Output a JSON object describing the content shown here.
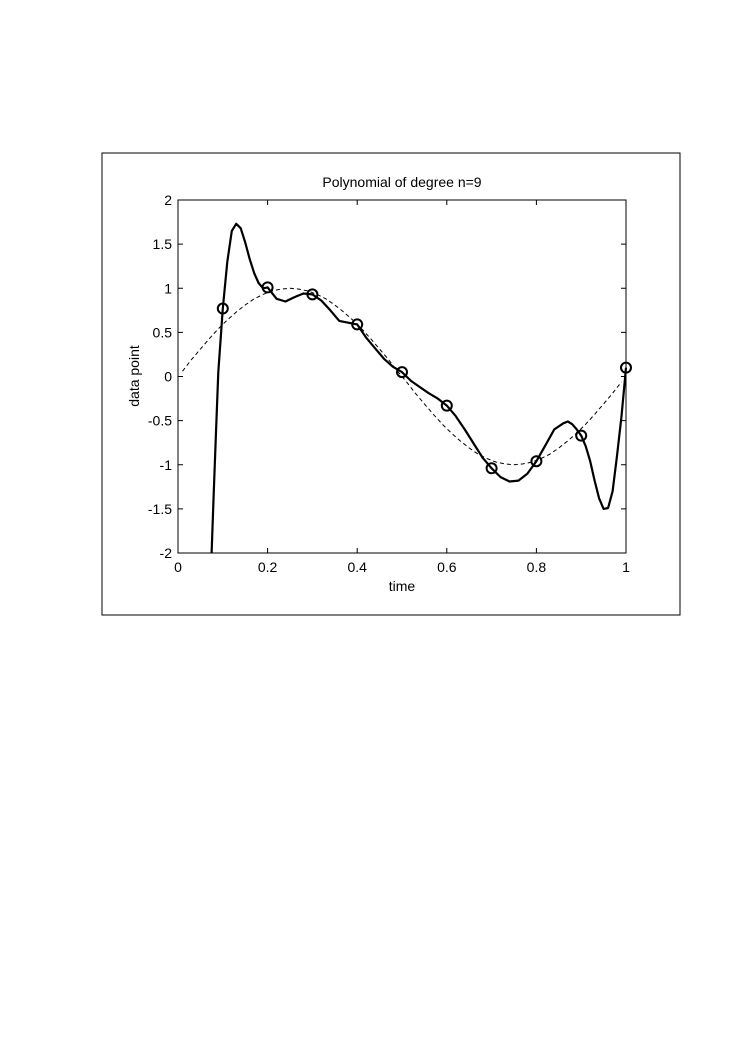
{
  "chart_data": {
    "type": "line",
    "title": "Polynomial of degree n=9",
    "xlabel": "time",
    "ylabel": "data point",
    "xlim": [
      0,
      1
    ],
    "ylim": [
      -2,
      2
    ],
    "x_ticks": [
      0,
      0.2,
      0.4,
      0.6,
      0.8,
      1
    ],
    "x_tick_labels": [
      "0",
      "0.2",
      "0.4",
      "0.6",
      "0.8",
      "1"
    ],
    "y_ticks": [
      -2,
      -1.5,
      -1,
      -0.5,
      0,
      0.5,
      1,
      1.5,
      2
    ],
    "y_tick_labels": [
      "-2",
      "-1.5",
      "-1",
      "-0.5",
      "0",
      "0.5",
      "1",
      "1.5",
      "2"
    ],
    "grid": false,
    "legend": "none",
    "series": [
      {
        "style": "circle-markers",
        "x": [
          0.1,
          0.2,
          0.3,
          0.4,
          0.5,
          0.6,
          0.7,
          0.8,
          0.9,
          1.0
        ],
        "y": [
          0.77,
          1.01,
          0.93,
          0.59,
          0.05,
          -0.33,
          -1.04,
          -0.96,
          -0.67,
          0.1
        ]
      },
      {
        "style": "solid-thick",
        "x": [
          0.075,
          0.08,
          0.085,
          0.09,
          0.1,
          0.11,
          0.12,
          0.13,
          0.14,
          0.15,
          0.16,
          0.17,
          0.18,
          0.19,
          0.2,
          0.22,
          0.24,
          0.26,
          0.28,
          0.3,
          0.32,
          0.34,
          0.36,
          0.38,
          0.4,
          0.42,
          0.44,
          0.46,
          0.48,
          0.5,
          0.52,
          0.54,
          0.56,
          0.58,
          0.6,
          0.62,
          0.64,
          0.66,
          0.68,
          0.7,
          0.72,
          0.74,
          0.76,
          0.78,
          0.8,
          0.82,
          0.84,
          0.86,
          0.87,
          0.88,
          0.89,
          0.9,
          0.91,
          0.92,
          0.93,
          0.94,
          0.95,
          0.96,
          0.97,
          0.98,
          0.99,
          1.0
        ],
        "y": [
          -2.0,
          -1.3,
          -0.6,
          0.05,
          0.77,
          1.3,
          1.65,
          1.73,
          1.68,
          1.52,
          1.33,
          1.17,
          1.06,
          1.0,
          1.01,
          0.88,
          0.85,
          0.9,
          0.94,
          0.93,
          0.86,
          0.75,
          0.63,
          0.61,
          0.59,
          0.44,
          0.32,
          0.2,
          0.11,
          0.05,
          -0.05,
          -0.12,
          -0.19,
          -0.25,
          -0.33,
          -0.45,
          -0.6,
          -0.76,
          -0.92,
          -1.04,
          -1.14,
          -1.19,
          -1.18,
          -1.1,
          -0.96,
          -0.78,
          -0.6,
          -0.53,
          -0.51,
          -0.54,
          -0.6,
          -0.67,
          -0.79,
          -0.96,
          -1.18,
          -1.38,
          -1.5,
          -1.49,
          -1.3,
          -0.9,
          -0.45,
          0.1
        ]
      },
      {
        "style": "dashed",
        "x": [
          0.01,
          0.03,
          0.05,
          0.07,
          0.09,
          0.11,
          0.13,
          0.15,
          0.17,
          0.19,
          0.21,
          0.23,
          0.25,
          0.27,
          0.29,
          0.31,
          0.33,
          0.35,
          0.37,
          0.39,
          0.41,
          0.43,
          0.45,
          0.47,
          0.49,
          0.51,
          0.53,
          0.55,
          0.57,
          0.59,
          0.61,
          0.63,
          0.65,
          0.67,
          0.69,
          0.71,
          0.73,
          0.75,
          0.77,
          0.79,
          0.81,
          0.83,
          0.85,
          0.87,
          0.89,
          0.91,
          0.93,
          0.95,
          0.97,
          0.99
        ],
        "y": [
          0.06,
          0.19,
          0.31,
          0.43,
          0.54,
          0.64,
          0.73,
          0.81,
          0.88,
          0.93,
          0.97,
          0.99,
          1.0,
          0.99,
          0.97,
          0.93,
          0.88,
          0.81,
          0.73,
          0.64,
          0.54,
          0.43,
          0.31,
          0.19,
          0.06,
          -0.06,
          -0.19,
          -0.31,
          -0.43,
          -0.54,
          -0.64,
          -0.73,
          -0.81,
          -0.88,
          -0.93,
          -0.97,
          -0.99,
          -1.0,
          -0.99,
          -0.97,
          -0.93,
          -0.88,
          -0.81,
          -0.73,
          -0.64,
          -0.54,
          -0.43,
          -0.31,
          -0.19,
          -0.06
        ]
      }
    ]
  }
}
